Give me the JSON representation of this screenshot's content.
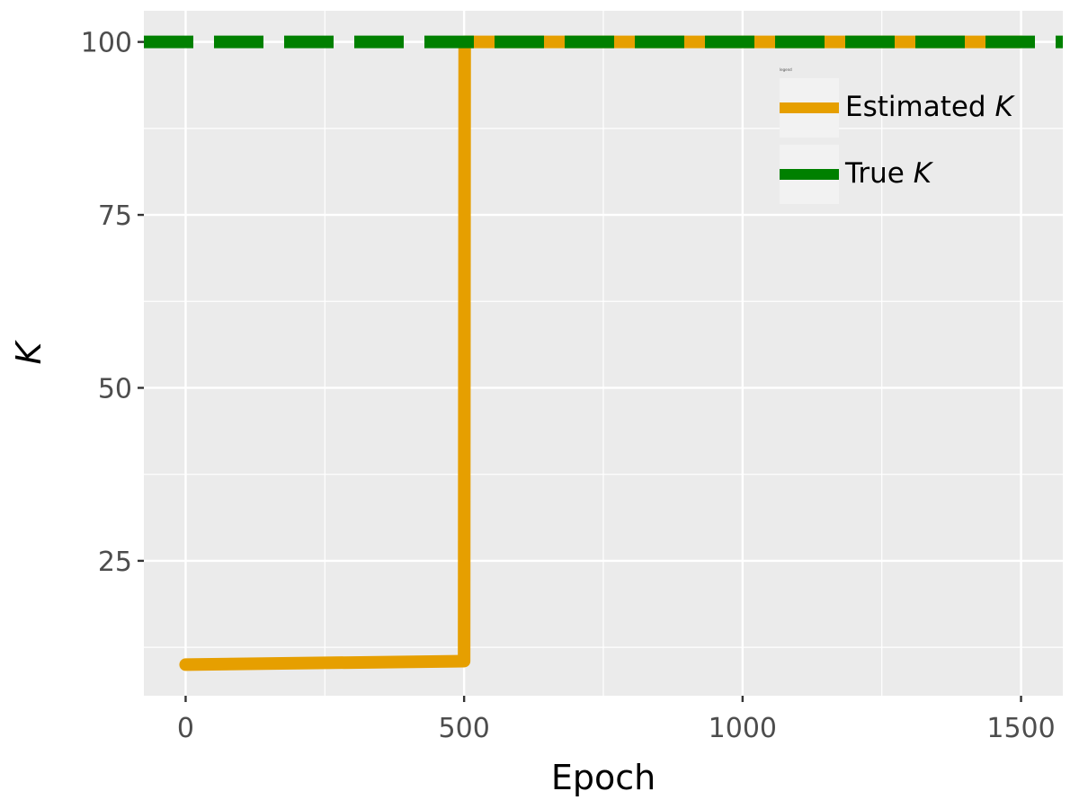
{
  "chart_data": {
    "type": "line",
    "title": "",
    "xlabel": "Epoch",
    "ylabel": "K",
    "xlim": [
      -75,
      1575
    ],
    "ylim": [
      5.5,
      104.5
    ],
    "x_ticks": [
      0,
      500,
      1000,
      1500
    ],
    "x_tick_labels": [
      "0",
      "500",
      "1000",
      "1500"
    ],
    "y_ticks": [
      25,
      50,
      75,
      100
    ],
    "y_tick_labels": [
      "25",
      "50",
      "75",
      "100"
    ],
    "grid": true,
    "legend": {
      "title": "legend",
      "placement": "top-right",
      "entries": [
        {
          "prefix": "Estimated ",
          "italic": "K"
        },
        {
          "prefix": "True ",
          "italic": "K"
        }
      ]
    },
    "series": [
      {
        "color": "#E69F00",
        "dash": "solid",
        "points": [
          [
            0,
            10
          ],
          [
            500,
            10.5
          ],
          [
            501,
            100
          ],
          [
            1500,
            100
          ]
        ]
      },
      {
        "color": "#008000",
        "dash": "dashed",
        "points": [
          [
            -75,
            100
          ],
          [
            1575,
            100
          ]
        ]
      }
    ]
  }
}
